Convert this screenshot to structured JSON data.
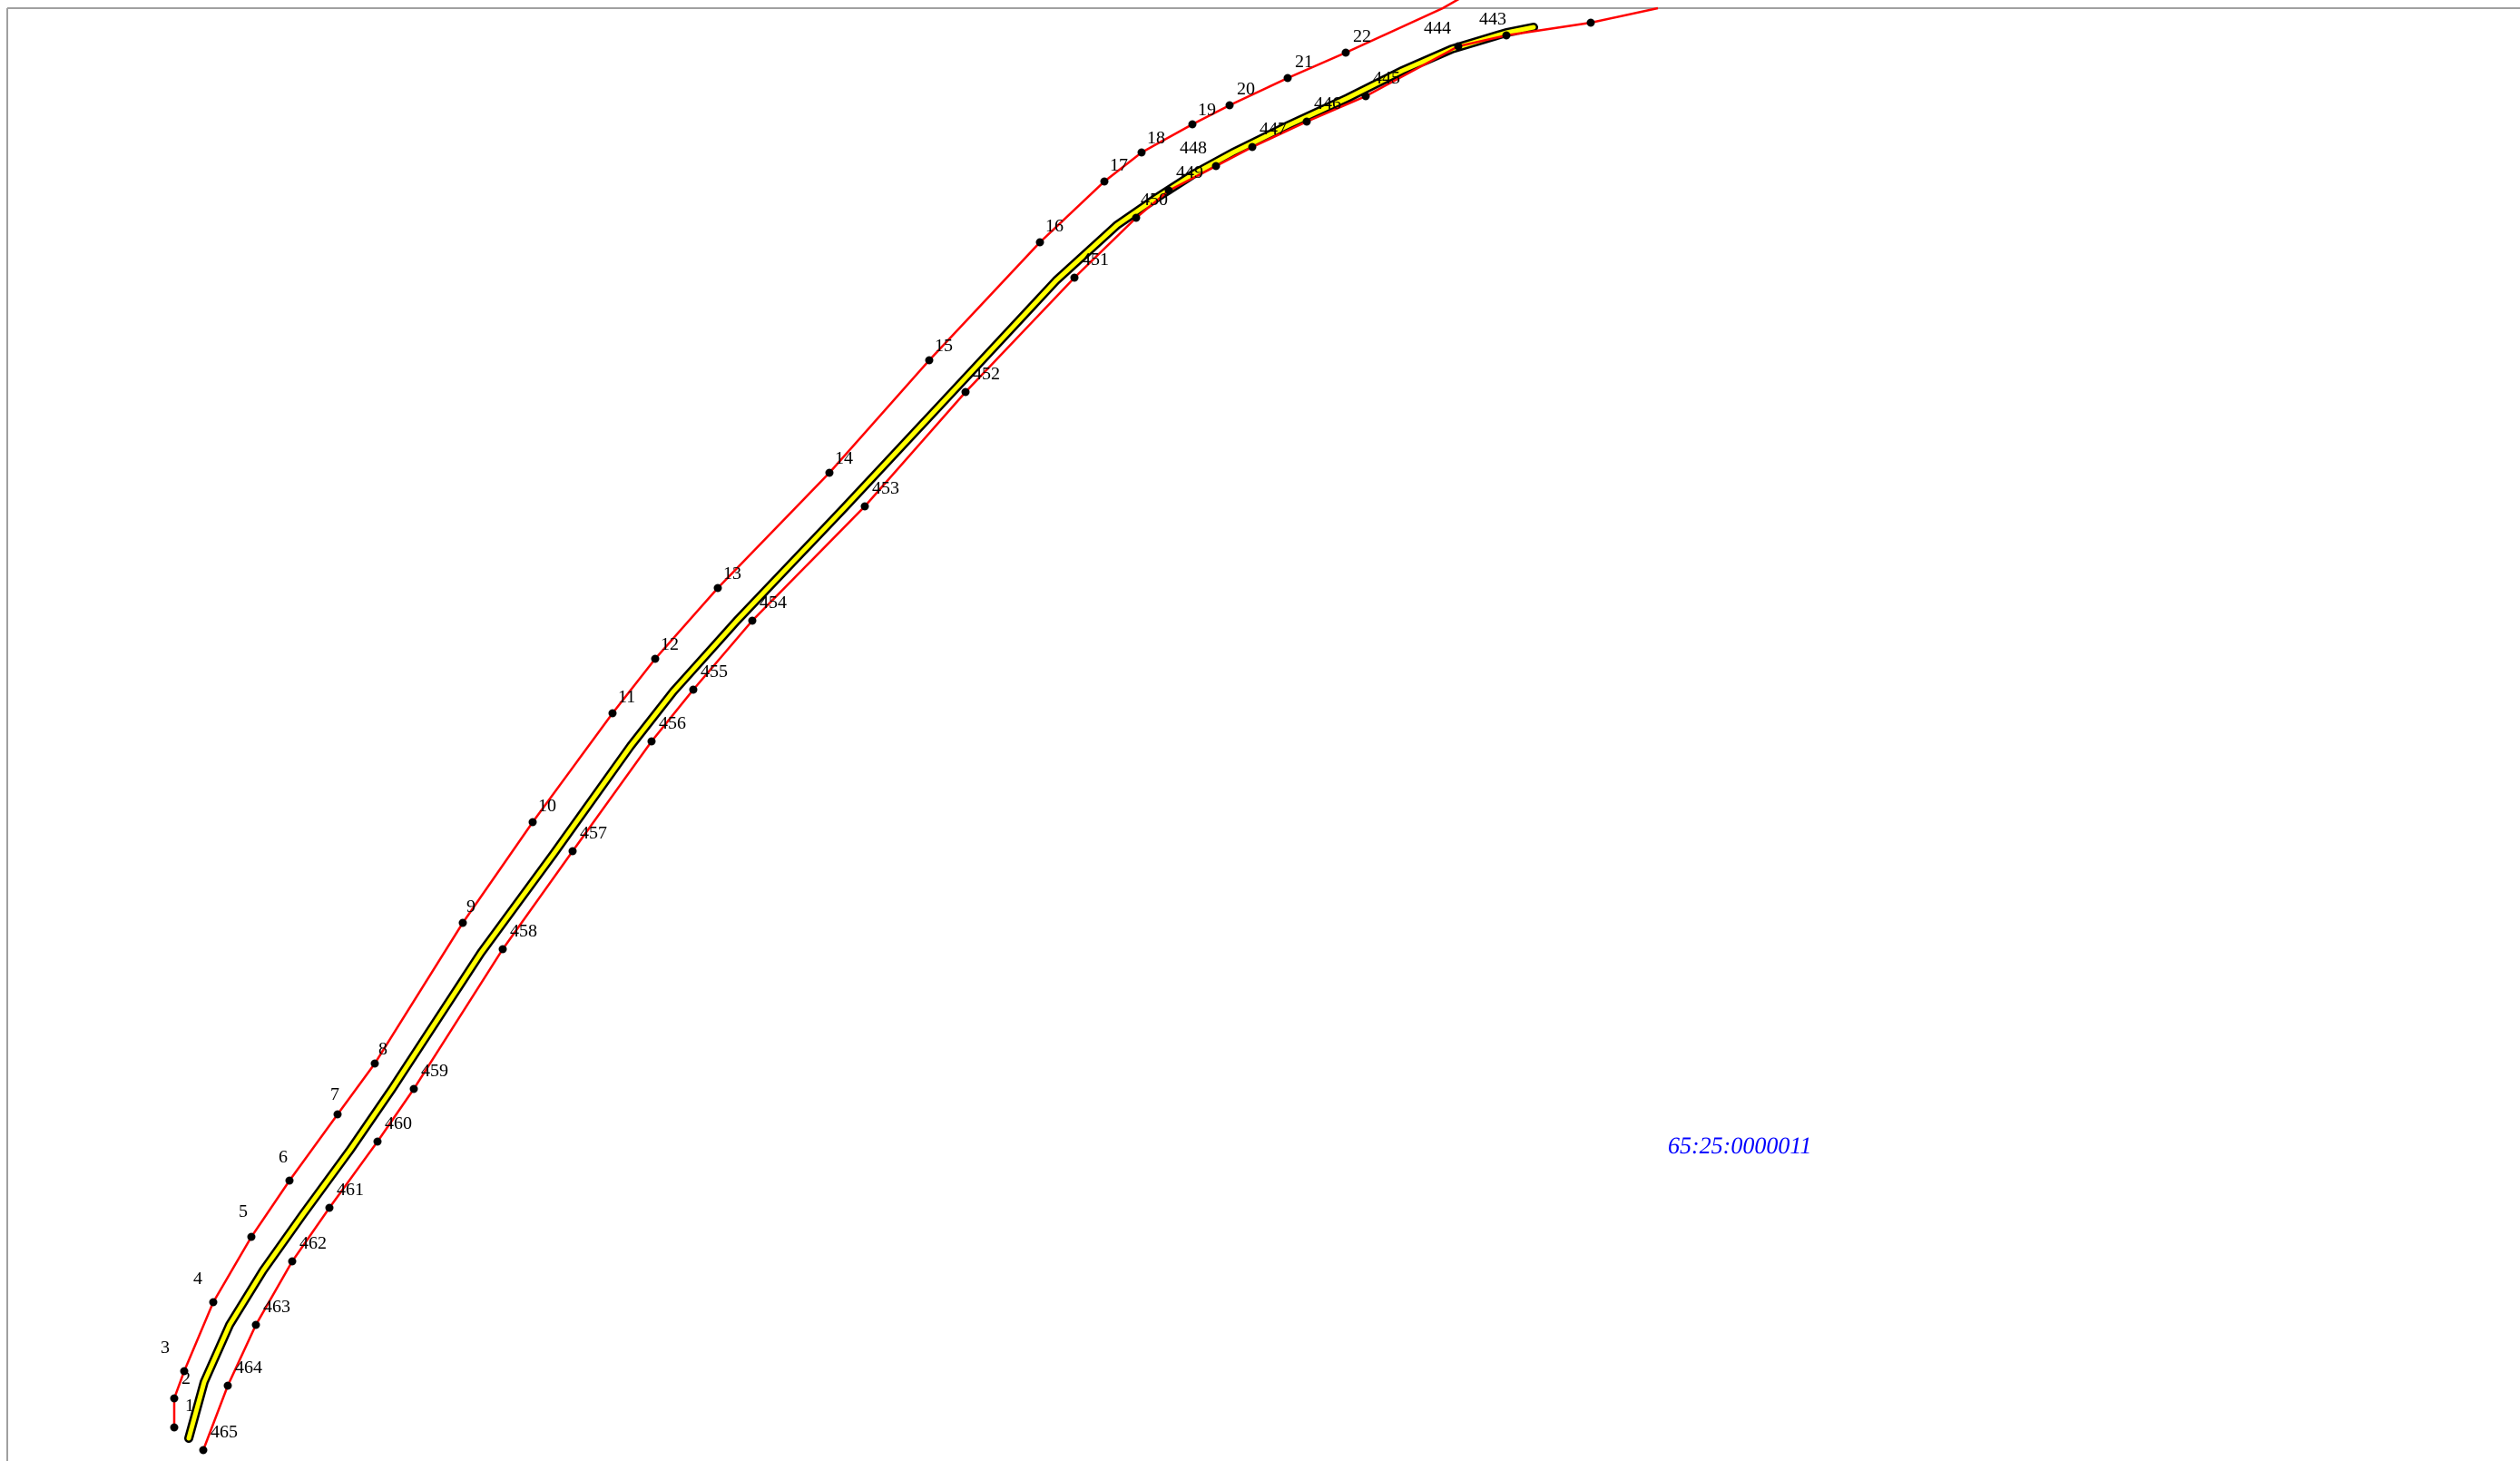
{
  "map": {
    "parcel_id": "65:25:0000011",
    "colors": {
      "boundary": "#ff0000",
      "centerline_casing": "#000000",
      "centerline_fill": "#ffff00",
      "point": "#000000",
      "label": "#000000",
      "parcel_id": "#0000ff",
      "frame": "#a0a0a0"
    },
    "upper_boundary_labels": [
      "1",
      "2",
      "3",
      "4",
      "5",
      "6",
      "7",
      "8",
      "9",
      "10",
      "11",
      "12",
      "13",
      "14",
      "15",
      "16",
      "17",
      "18",
      "19",
      "20",
      "21",
      "22"
    ],
    "lower_boundary_labels": [
      "443",
      "444",
      "445",
      "446",
      "447",
      "448",
      "449",
      "450",
      "451",
      "452",
      "453",
      "454",
      "455",
      "456",
      "457",
      "458",
      "459",
      "460",
      "461",
      "462",
      "463",
      "464",
      "465"
    ]
  }
}
